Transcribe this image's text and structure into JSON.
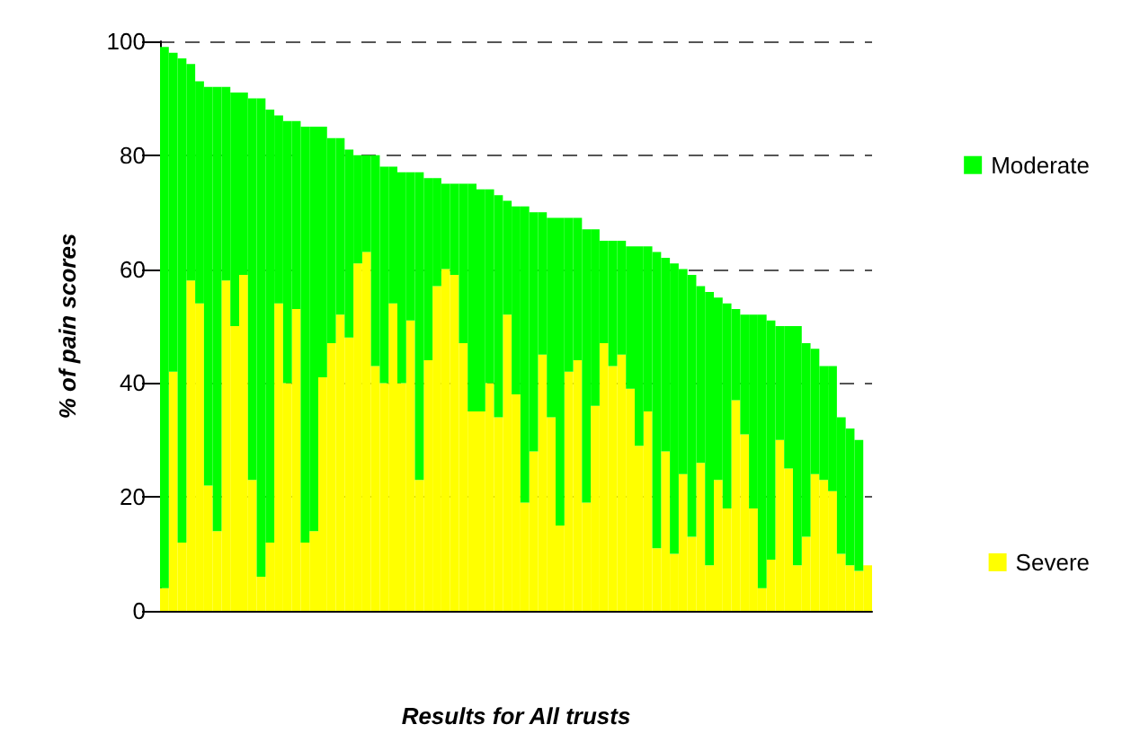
{
  "chart_data": {
    "type": "bar",
    "stacked": true,
    "xlabel": "Results for All trusts",
    "ylabel": "% of pain scores",
    "categories": [
      null,
      null,
      null,
      null,
      null,
      null,
      null,
      null,
      null,
      null,
      null,
      null,
      null,
      null,
      null,
      null,
      null,
      null,
      null,
      null,
      null,
      null,
      null,
      null,
      null,
      null,
      null,
      null,
      null,
      null,
      null,
      null,
      null,
      null,
      null,
      null,
      null,
      null,
      null,
      null,
      null,
      null,
      null,
      null,
      null,
      null,
      null,
      null,
      null,
      null,
      null,
      null,
      null,
      null,
      null,
      null,
      null,
      null,
      null,
      null,
      null,
      null,
      null,
      null,
      null,
      null,
      null,
      null,
      null,
      null,
      null,
      null,
      null,
      null,
      null,
      null,
      null,
      null,
      null,
      null,
      null
    ],
    "series": [
      {
        "name": "Severe",
        "color": "#ffff00",
        "values": [
          4,
          42,
          12,
          58,
          54,
          22,
          14,
          58,
          50,
          59,
          23,
          6,
          12,
          54,
          40,
          53,
          12,
          14,
          41,
          47,
          52,
          48,
          61,
          63,
          43,
          40,
          54,
          40,
          51,
          23,
          44,
          57,
          60,
          59,
          47,
          35,
          35,
          40,
          34,
          52,
          38,
          19,
          28,
          45,
          34,
          15,
          42,
          44,
          19,
          36,
          47,
          43,
          45,
          39,
          29,
          35,
          11,
          28,
          10,
          24,
          13,
          26,
          8,
          23,
          18,
          37,
          31,
          18,
          4,
          9,
          30,
          25,
          8,
          13,
          24,
          23,
          21,
          10,
          8,
          7,
          8
        ]
      },
      {
        "name": "Moderate",
        "color": "#00ff00",
        "values": [
          95,
          56,
          85,
          38,
          39,
          70,
          78,
          34,
          41,
          32,
          67,
          84,
          76,
          33,
          46,
          33,
          73,
          71,
          44,
          36,
          31,
          33,
          19,
          17,
          37,
          38,
          24,
          37,
          26,
          54,
          32,
          19,
          15,
          16,
          28,
          40,
          39,
          34,
          39,
          20,
          33,
          52,
          42,
          25,
          35,
          54,
          27,
          25,
          48,
          31,
          18,
          22,
          20,
          25,
          35,
          29,
          52,
          34,
          51,
          36,
          46,
          31,
          48,
          32,
          36,
          16,
          21,
          34,
          48,
          42,
          20,
          25,
          42,
          34,
          22,
          20,
          22,
          24,
          24,
          23,
          0
        ]
      }
    ],
    "ylim": [
      0,
      100
    ],
    "yticks": [
      0,
      20,
      40,
      60,
      80,
      100
    ],
    "grid": "y",
    "legend": "right",
    "tick_labels": "y"
  }
}
